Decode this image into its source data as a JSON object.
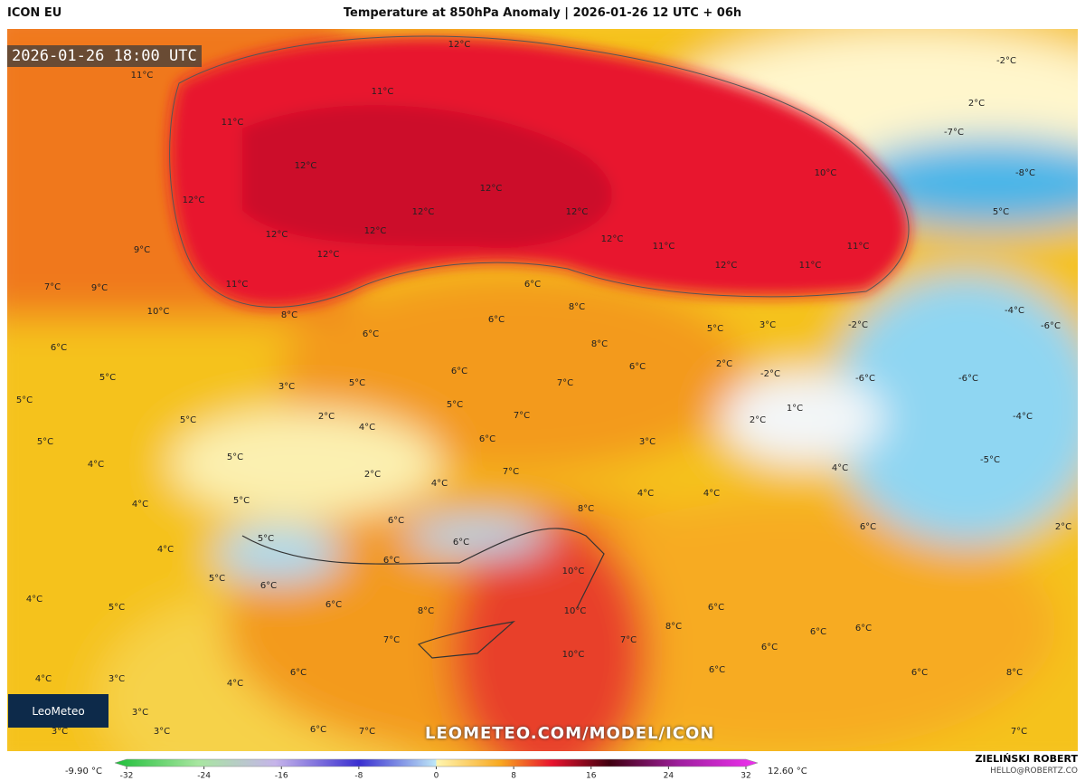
{
  "header": {
    "model": "ICON EU",
    "title": "Temperature at 850hPa Anomaly | 2026-01-26 12 UTC + 06h"
  },
  "map": {
    "valid_time": "2026-01-26 18:00 UTC",
    "logo": "LeoMeteo",
    "watermark": "LEOMETEO.COM/MODEL/ICON",
    "labels": [
      "12°C",
      "11°C",
      "11°C",
      "11°C",
      "12°C",
      "12°C",
      "10°C",
      "12°C",
      "12°C",
      "12°C",
      "12°C",
      "12°C",
      "12°C",
      "11°C",
      "12°C",
      "11°C",
      "12°C",
      "11°C",
      "9°C",
      "11°C",
      "7°C",
      "9°C",
      "10°C",
      "8°C",
      "6°C",
      "6°C",
      "8°C",
      "6°C",
      "5°C",
      "3°C",
      "-2°C",
      "6°C",
      "8°C",
      "2°C",
      "-2°C",
      "6°C",
      "6°C",
      "5°C",
      "5°C",
      "3°C",
      "7°C",
      "5°C",
      "5°C",
      "1°C",
      "2°C",
      "4°C",
      "7°C",
      "2°C",
      "5°C",
      "6°C",
      "3°C",
      "5°C",
      "5°C",
      "4°C",
      "2°C",
      "7°C",
      "4°C",
      "4°C",
      "4°C",
      "4°C",
      "4°C",
      "5°C",
      "6°C",
      "8°C",
      "6°C",
      "2°C",
      "5°C",
      "6°C",
      "4°C",
      "6°C",
      "10°C",
      "5°C",
      "6°C",
      "4°C",
      "6°C",
      "5°C",
      "6°C",
      "8°C",
      "10°C",
      "8°C",
      "6°C",
      "6°C",
      "7°C",
      "7°C",
      "6°C",
      "10°C",
      "4°C",
      "3°C",
      "4°C",
      "6°C",
      "6°C",
      "6°C",
      "8°C",
      "3°C",
      "3°C",
      "3°C",
      "6°C",
      "7°C",
      "7°C",
      "-2°C",
      "2°C",
      "-7°C",
      "-8°C",
      "5°C",
      "-4°C",
      "-6°C",
      "-6°C",
      "-4°C",
      "-5°C",
      "-6°C"
    ]
  },
  "colorbar": {
    "min_label": "-9.90 °C",
    "max_label": "12.60 °C",
    "range": [
      -32,
      32
    ],
    "ticks": [
      -32,
      -24,
      -16,
      -8,
      0,
      8,
      16,
      24,
      32
    ]
  },
  "footer": {
    "author": "ZIELIŃSKI ROBERT",
    "email": "HELLO@ROBERTZ.CO"
  }
}
